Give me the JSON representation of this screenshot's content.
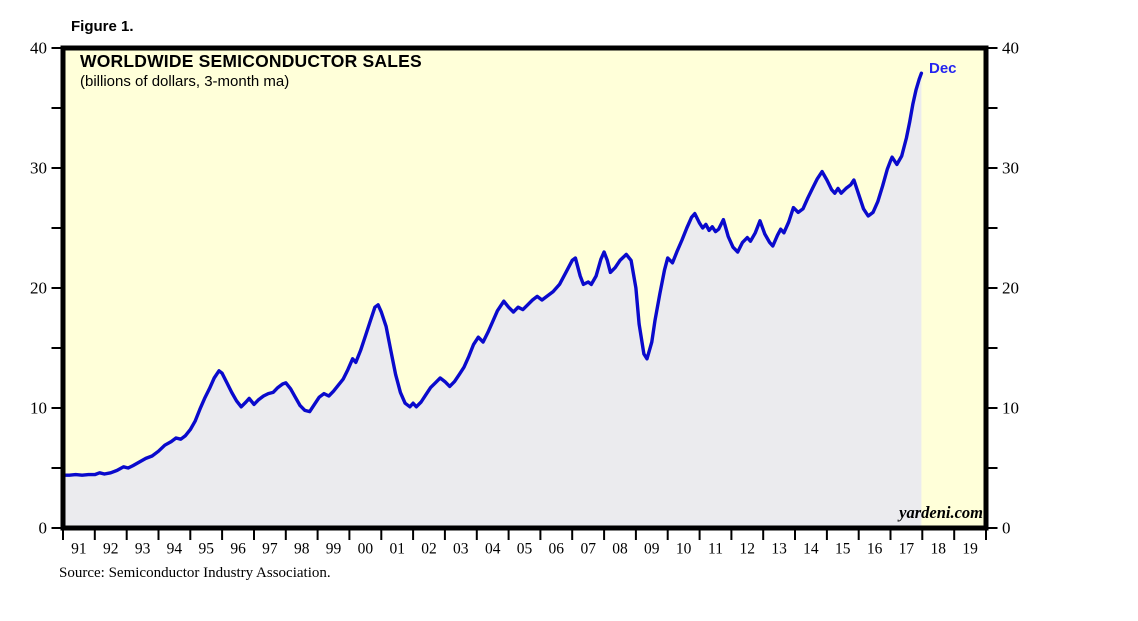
{
  "figure_label": "Figure 1.",
  "chart_data": {
    "type": "area",
    "title": "WORLDWIDE SEMICONDUCTOR SALES",
    "subtitle": "(billions of dollars, 3-month ma)",
    "ylabel": "billions of dollars, 3-month moving average",
    "xlabel": "",
    "ylim": [
      0,
      40
    ],
    "y_major_ticks": [
      0,
      10,
      20,
      30,
      40
    ],
    "y_minor_ticks": [
      5,
      15,
      25,
      35
    ],
    "x_start": 1991,
    "x_end": 2020,
    "x_tick_labels": [
      "91",
      "92",
      "93",
      "94",
      "95",
      "96",
      "97",
      "98",
      "99",
      "00",
      "01",
      "02",
      "03",
      "04",
      "05",
      "06",
      "07",
      "08",
      "09",
      "10",
      "11",
      "12",
      "13",
      "14",
      "15",
      "16",
      "17",
      "18",
      "19"
    ],
    "grid": false,
    "legend": "none",
    "last_point": {
      "label": "Dec",
      "year": 2017,
      "value": 37.9
    },
    "watermark": "yardeni.com",
    "source_note": "Source: Semiconductor Industry Association.",
    "series": [
      {
        "name": "Worldwide semiconductor sales ($B, 3-month ma)",
        "points": [
          [
            1991.0,
            4.4
          ],
          [
            1991.2,
            4.4
          ],
          [
            1991.4,
            4.45
          ],
          [
            1991.6,
            4.4
          ],
          [
            1991.8,
            4.45
          ],
          [
            1992.0,
            4.45
          ],
          [
            1992.15,
            4.6
          ],
          [
            1992.3,
            4.5
          ],
          [
            1992.5,
            4.6
          ],
          [
            1992.7,
            4.8
          ],
          [
            1992.9,
            5.1
          ],
          [
            1993.05,
            5.0
          ],
          [
            1993.2,
            5.2
          ],
          [
            1993.4,
            5.5
          ],
          [
            1993.6,
            5.8
          ],
          [
            1993.8,
            6.0
          ],
          [
            1994.0,
            6.4
          ],
          [
            1994.2,
            6.9
          ],
          [
            1994.4,
            7.2
          ],
          [
            1994.55,
            7.5
          ],
          [
            1994.7,
            7.4
          ],
          [
            1994.85,
            7.7
          ],
          [
            1995.0,
            8.2
          ],
          [
            1995.15,
            8.9
          ],
          [
            1995.3,
            9.9
          ],
          [
            1995.45,
            10.8
          ],
          [
            1995.6,
            11.6
          ],
          [
            1995.75,
            12.5
          ],
          [
            1995.9,
            13.1
          ],
          [
            1996.0,
            12.9
          ],
          [
            1996.15,
            12.1
          ],
          [
            1996.3,
            11.3
          ],
          [
            1996.45,
            10.6
          ],
          [
            1996.6,
            10.1
          ],
          [
            1996.75,
            10.5
          ],
          [
            1996.85,
            10.8
          ],
          [
            1997.0,
            10.3
          ],
          [
            1997.15,
            10.7
          ],
          [
            1997.3,
            11.0
          ],
          [
            1997.45,
            11.2
          ],
          [
            1997.6,
            11.3
          ],
          [
            1997.75,
            11.7
          ],
          [
            1997.9,
            12.0
          ],
          [
            1998.0,
            12.1
          ],
          [
            1998.15,
            11.6
          ],
          [
            1998.3,
            10.9
          ],
          [
            1998.45,
            10.2
          ],
          [
            1998.6,
            9.8
          ],
          [
            1998.75,
            9.7
          ],
          [
            1998.9,
            10.3
          ],
          [
            1999.05,
            10.9
          ],
          [
            1999.2,
            11.2
          ],
          [
            1999.35,
            11.0
          ],
          [
            1999.5,
            11.4
          ],
          [
            1999.65,
            11.9
          ],
          [
            1999.8,
            12.4
          ],
          [
            1999.95,
            13.2
          ],
          [
            2000.1,
            14.1
          ],
          [
            2000.2,
            13.8
          ],
          [
            2000.35,
            14.8
          ],
          [
            2000.5,
            16.0
          ],
          [
            2000.65,
            17.2
          ],
          [
            2000.8,
            18.4
          ],
          [
            2000.9,
            18.6
          ],
          [
            2001.0,
            18.0
          ],
          [
            2001.15,
            16.8
          ],
          [
            2001.3,
            14.8
          ],
          [
            2001.45,
            12.8
          ],
          [
            2001.6,
            11.3
          ],
          [
            2001.75,
            10.4
          ],
          [
            2001.9,
            10.1
          ],
          [
            2002.0,
            10.4
          ],
          [
            2002.1,
            10.1
          ],
          [
            2002.25,
            10.5
          ],
          [
            2002.4,
            11.1
          ],
          [
            2002.55,
            11.7
          ],
          [
            2002.7,
            12.1
          ],
          [
            2002.85,
            12.5
          ],
          [
            2003.0,
            12.2
          ],
          [
            2003.15,
            11.8
          ],
          [
            2003.3,
            12.2
          ],
          [
            2003.45,
            12.8
          ],
          [
            2003.6,
            13.4
          ],
          [
            2003.75,
            14.3
          ],
          [
            2003.9,
            15.3
          ],
          [
            2004.05,
            15.9
          ],
          [
            2004.2,
            15.5
          ],
          [
            2004.35,
            16.3
          ],
          [
            2004.5,
            17.2
          ],
          [
            2004.65,
            18.1
          ],
          [
            2004.85,
            18.9
          ],
          [
            2005.0,
            18.4
          ],
          [
            2005.15,
            18.0
          ],
          [
            2005.3,
            18.4
          ],
          [
            2005.45,
            18.2
          ],
          [
            2005.6,
            18.6
          ],
          [
            2005.75,
            19.0
          ],
          [
            2005.9,
            19.3
          ],
          [
            2006.05,
            19.0
          ],
          [
            2006.2,
            19.3
          ],
          [
            2006.4,
            19.7
          ],
          [
            2006.6,
            20.3
          ],
          [
            2006.8,
            21.3
          ],
          [
            2007.0,
            22.3
          ],
          [
            2007.1,
            22.5
          ],
          [
            2007.25,
            21.0
          ],
          [
            2007.35,
            20.3
          ],
          [
            2007.5,
            20.5
          ],
          [
            2007.6,
            20.3
          ],
          [
            2007.75,
            21.0
          ],
          [
            2007.9,
            22.4
          ],
          [
            2008.0,
            23.0
          ],
          [
            2008.1,
            22.3
          ],
          [
            2008.2,
            21.3
          ],
          [
            2008.35,
            21.7
          ],
          [
            2008.5,
            22.3
          ],
          [
            2008.7,
            22.8
          ],
          [
            2008.85,
            22.3
          ],
          [
            2009.0,
            20.0
          ],
          [
            2009.1,
            17.0
          ],
          [
            2009.25,
            14.5
          ],
          [
            2009.35,
            14.1
          ],
          [
            2009.5,
            15.5
          ],
          [
            2009.6,
            17.3
          ],
          [
            2009.75,
            19.5
          ],
          [
            2009.9,
            21.5
          ],
          [
            2010.0,
            22.5
          ],
          [
            2010.15,
            22.1
          ],
          [
            2010.3,
            23.1
          ],
          [
            2010.45,
            24.0
          ],
          [
            2010.6,
            25.0
          ],
          [
            2010.75,
            25.9
          ],
          [
            2010.85,
            26.2
          ],
          [
            2011.0,
            25.4
          ],
          [
            2011.1,
            25.0
          ],
          [
            2011.2,
            25.3
          ],
          [
            2011.3,
            24.8
          ],
          [
            2011.4,
            25.1
          ],
          [
            2011.5,
            24.7
          ],
          [
            2011.6,
            24.9
          ],
          [
            2011.75,
            25.7
          ],
          [
            2011.9,
            24.3
          ],
          [
            2012.05,
            23.4
          ],
          [
            2012.2,
            23.0
          ],
          [
            2012.35,
            23.8
          ],
          [
            2012.5,
            24.2
          ],
          [
            2012.6,
            23.9
          ],
          [
            2012.75,
            24.6
          ],
          [
            2012.9,
            25.6
          ],
          [
            2013.05,
            24.5
          ],
          [
            2013.2,
            23.8
          ],
          [
            2013.3,
            23.5
          ],
          [
            2013.45,
            24.4
          ],
          [
            2013.55,
            24.9
          ],
          [
            2013.65,
            24.6
          ],
          [
            2013.8,
            25.5
          ],
          [
            2013.95,
            26.7
          ],
          [
            2014.1,
            26.3
          ],
          [
            2014.25,
            26.6
          ],
          [
            2014.4,
            27.5
          ],
          [
            2014.55,
            28.3
          ],
          [
            2014.7,
            29.1
          ],
          [
            2014.85,
            29.7
          ],
          [
            2015.0,
            29.0
          ],
          [
            2015.15,
            28.2
          ],
          [
            2015.25,
            27.9
          ],
          [
            2015.35,
            28.3
          ],
          [
            2015.45,
            27.9
          ],
          [
            2015.6,
            28.3
          ],
          [
            2015.75,
            28.6
          ],
          [
            2015.85,
            29.0
          ],
          [
            2016.0,
            27.8
          ],
          [
            2016.15,
            26.6
          ],
          [
            2016.3,
            26.0
          ],
          [
            2016.45,
            26.3
          ],
          [
            2016.6,
            27.2
          ],
          [
            2016.75,
            28.5
          ],
          [
            2016.9,
            29.9
          ],
          [
            2017.0,
            30.6
          ],
          [
            2017.05,
            30.9
          ],
          [
            2017.2,
            30.3
          ],
          [
            2017.35,
            31.0
          ],
          [
            2017.5,
            32.5
          ],
          [
            2017.6,
            33.8
          ],
          [
            2017.7,
            35.3
          ],
          [
            2017.8,
            36.5
          ],
          [
            2017.9,
            37.4
          ],
          [
            2017.97,
            37.9
          ]
        ]
      }
    ],
    "colors": {
      "line": "#0a0acc",
      "fill": "#ebebee",
      "plot_bg": "#ffffd9",
      "frame": "#000000",
      "annotation": "#2424f0"
    }
  }
}
